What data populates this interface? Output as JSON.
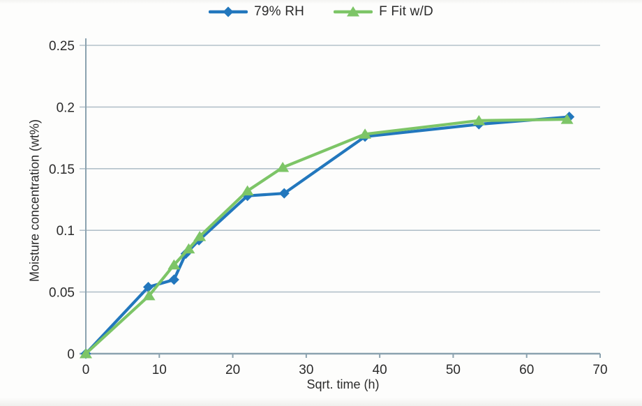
{
  "chart_data": {
    "type": "line",
    "title": "",
    "xlabel": "Sqrt. time (h)",
    "ylabel": "Moisture concentration (wt%)",
    "xlim": [
      0,
      70
    ],
    "ylim": [
      0,
      0.25
    ],
    "grid": "horizontal",
    "legend_position": "top-center",
    "x_ticks": [
      {
        "value": 0,
        "label": "0"
      },
      {
        "value": 10,
        "label": "10"
      },
      {
        "value": 20,
        "label": "20"
      },
      {
        "value": 30,
        "label": "30"
      },
      {
        "value": 40,
        "label": "40"
      },
      {
        "value": 50,
        "label": "50"
      },
      {
        "value": 60,
        "label": "60"
      },
      {
        "value": 70,
        "label": "70"
      }
    ],
    "y_ticks": [
      {
        "value": 0,
        "label": "0"
      },
      {
        "value": 0.05,
        "label": "0.05"
      },
      {
        "value": 0.1,
        "label": "0.1"
      },
      {
        "value": 0.15,
        "label": "0.15"
      },
      {
        "value": 0.2,
        "label": "0.2"
      },
      {
        "value": 0.25,
        "label": "0.25"
      }
    ],
    "series": [
      {
        "name": "79% RH",
        "color": "#2277bd",
        "marker": "diamond",
        "points": [
          [
            0,
            0
          ],
          [
            8.5,
            0.054
          ],
          [
            12,
            0.06
          ],
          [
            13.6,
            0.081
          ],
          [
            15.4,
            0.092
          ],
          [
            22,
            0.128
          ],
          [
            27,
            0.13
          ],
          [
            38,
            0.176
          ],
          [
            53.5,
            0.186
          ],
          [
            65.8,
            0.192
          ]
        ]
      },
      {
        "name": "F Fit w/D",
        "color": "#7dc567",
        "marker": "triangle",
        "points": [
          [
            0,
            0
          ],
          [
            8.6,
            0.047
          ],
          [
            12,
            0.072
          ],
          [
            14,
            0.085
          ],
          [
            15.5,
            0.095
          ],
          [
            22,
            0.132
          ],
          [
            26.8,
            0.151
          ],
          [
            38,
            0.178
          ],
          [
            53.5,
            0.189
          ],
          [
            65.5,
            0.19
          ]
        ]
      }
    ]
  },
  "colors": {
    "series_blue": "#2277bd",
    "series_green": "#7dc567",
    "gridline": "#b3c1ca",
    "axis": "#8ba2af",
    "text": "#2b2b2b"
  }
}
